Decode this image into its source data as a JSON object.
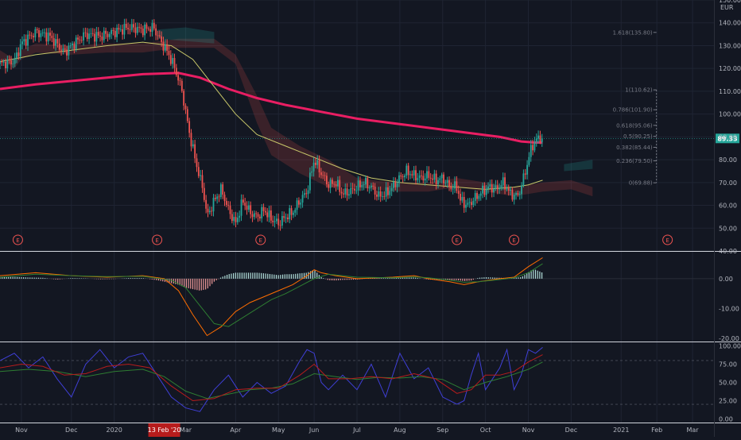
{
  "chart_data": {
    "type": "candlestick",
    "currency_label": "EUR",
    "current_price_label": "89.33",
    "price_axis": {
      "range": [
        40,
        150
      ],
      "ticks": [
        "150.00",
        "140.00",
        "130.00",
        "120.00",
        "110.00",
        "100.00",
        "90.00",
        "80.00",
        "70.00",
        "60.00",
        "50.00",
        "40.00"
      ]
    },
    "macd_axis": {
      "range": [
        -21,
        9
      ],
      "ticks": [
        "0.00",
        "-10.00",
        "-20.00"
      ]
    },
    "stoch_axis": {
      "range": [
        -5,
        105
      ],
      "ticks": [
        "100.00",
        "75.00",
        "50.00",
        "25.00",
        "0.00"
      ]
    },
    "x_axis": {
      "labels": [
        {
          "t": 0.03,
          "label": "Nov"
        },
        {
          "t": 0.1,
          "label": "Dec"
        },
        {
          "t": 0.16,
          "label": "2020"
        },
        {
          "t": 0.215,
          "label": "Feb"
        },
        {
          "t": 0.26,
          "label": "Mar"
        },
        {
          "t": 0.33,
          "label": "Apr"
        },
        {
          "t": 0.39,
          "label": "May"
        },
        {
          "t": 0.44,
          "label": "Jun"
        },
        {
          "t": 0.5,
          "label": "Jul"
        },
        {
          "t": 0.56,
          "label": "Aug"
        },
        {
          "t": 0.62,
          "label": "Sep"
        },
        {
          "t": 0.68,
          "label": "Oct"
        },
        {
          "t": 0.74,
          "label": "Nov"
        },
        {
          "t": 0.8,
          "label": "Dec"
        },
        {
          "t": 0.87,
          "label": "2021"
        },
        {
          "t": 0.92,
          "label": "Feb"
        },
        {
          "t": 0.97,
          "label": "Mar"
        }
      ],
      "highlight": {
        "t": 0.23,
        "label": "13 Feb '20"
      }
    },
    "fibonacci": [
      {
        "label": "1.618(135.80)",
        "value": 135.8
      },
      {
        "label": "1(110.62)",
        "value": 110.62
      },
      {
        "label": "0.786(101.90)",
        "value": 101.9
      },
      {
        "label": "0.618(95.06)",
        "value": 95.06
      },
      {
        "label": "0.5(90.25)",
        "value": 90.25
      },
      {
        "label": "0.382(85.44)",
        "value": 85.44
      },
      {
        "label": "0.236(79.50)",
        "value": 79.5
      },
      {
        "label": "0(69.88)",
        "value": 69.88
      }
    ],
    "earnings_markers": [
      {
        "t": 0.025,
        "label": "E"
      },
      {
        "t": 0.22,
        "label": "E"
      },
      {
        "t": 0.365,
        "label": "E"
      },
      {
        "t": 0.64,
        "label": "E"
      },
      {
        "t": 0.72,
        "label": "E"
      },
      {
        "t": 0.935,
        "label": "E"
      }
    ],
    "price_path": [
      [
        0.0,
        122
      ],
      [
        0.02,
        123
      ],
      [
        0.03,
        131
      ],
      [
        0.05,
        136
      ],
      [
        0.07,
        134
      ],
      [
        0.09,
        127
      ],
      [
        0.1,
        130
      ],
      [
        0.12,
        135
      ],
      [
        0.14,
        134
      ],
      [
        0.16,
        136
      ],
      [
        0.18,
        138
      ],
      [
        0.2,
        137
      ],
      [
        0.215,
        138
      ],
      [
        0.225,
        132
      ],
      [
        0.235,
        127
      ],
      [
        0.245,
        120
      ],
      [
        0.255,
        110
      ],
      [
        0.265,
        92
      ],
      [
        0.275,
        78
      ],
      [
        0.285,
        66
      ],
      [
        0.29,
        55
      ],
      [
        0.3,
        62
      ],
      [
        0.31,
        67
      ],
      [
        0.32,
        58
      ],
      [
        0.33,
        52
      ],
      [
        0.34,
        62
      ],
      [
        0.35,
        57
      ],
      [
        0.36,
        55
      ],
      [
        0.37,
        58
      ],
      [
        0.38,
        54
      ],
      [
        0.39,
        52
      ],
      [
        0.4,
        55
      ],
      [
        0.41,
        57
      ],
      [
        0.42,
        62
      ],
      [
        0.43,
        66
      ],
      [
        0.44,
        80
      ],
      [
        0.45,
        74
      ],
      [
        0.46,
        69
      ],
      [
        0.47,
        70
      ],
      [
        0.48,
        65
      ],
      [
        0.49,
        66
      ],
      [
        0.5,
        68
      ],
      [
        0.51,
        70
      ],
      [
        0.52,
        68
      ],
      [
        0.53,
        64
      ],
      [
        0.54,
        65
      ],
      [
        0.55,
        68
      ],
      [
        0.56,
        72
      ],
      [
        0.57,
        75
      ],
      [
        0.58,
        73
      ],
      [
        0.59,
        72
      ],
      [
        0.6,
        73
      ],
      [
        0.61,
        71
      ],
      [
        0.62,
        72
      ],
      [
        0.63,
        68
      ],
      [
        0.64,
        68
      ],
      [
        0.645,
        62
      ],
      [
        0.655,
        60
      ],
      [
        0.665,
        63
      ],
      [
        0.675,
        66
      ],
      [
        0.685,
        68
      ],
      [
        0.695,
        67
      ],
      [
        0.705,
        70
      ],
      [
        0.715,
        65
      ],
      [
        0.725,
        64
      ],
      [
        0.73,
        68
      ],
      [
        0.74,
        80
      ],
      [
        0.745,
        86
      ],
      [
        0.75,
        88
      ],
      [
        0.755,
        90
      ],
      [
        0.76,
        89
      ]
    ],
    "ema_slow": [
      [
        0.0,
        111
      ],
      [
        0.05,
        113
      ],
      [
        0.1,
        114.5
      ],
      [
        0.15,
        116
      ],
      [
        0.2,
        117.5
      ],
      [
        0.25,
        118
      ],
      [
        0.28,
        116
      ],
      [
        0.32,
        111
      ],
      [
        0.36,
        107
      ],
      [
        0.4,
        104
      ],
      [
        0.45,
        101
      ],
      [
        0.5,
        98
      ],
      [
        0.55,
        96
      ],
      [
        0.6,
        94
      ],
      [
        0.65,
        92
      ],
      [
        0.7,
        90
      ],
      [
        0.73,
        88
      ],
      [
        0.75,
        87.5
      ],
      [
        0.76,
        87.5
      ]
    ],
    "ema_fast": [
      [
        0.0,
        123
      ],
      [
        0.05,
        126
      ],
      [
        0.1,
        128
      ],
      [
        0.15,
        130
      ],
      [
        0.2,
        131.5
      ],
      [
        0.24,
        130
      ],
      [
        0.27,
        124
      ],
      [
        0.3,
        112
      ],
      [
        0.33,
        100
      ],
      [
        0.36,
        91
      ],
      [
        0.4,
        86
      ],
      [
        0.44,
        81
      ],
      [
        0.48,
        76
      ],
      [
        0.52,
        72
      ],
      [
        0.56,
        70
      ],
      [
        0.6,
        69
      ],
      [
        0.64,
        68
      ],
      [
        0.68,
        67
      ],
      [
        0.7,
        67.5
      ],
      [
        0.72,
        68
      ],
      [
        0.74,
        69
      ],
      [
        0.76,
        71
      ]
    ],
    "macd_line": [
      [
        0.0,
        1
      ],
      [
        0.05,
        2
      ],
      [
        0.1,
        1
      ],
      [
        0.15,
        0.5
      ],
      [
        0.2,
        1
      ],
      [
        0.23,
        0
      ],
      [
        0.25,
        -4
      ],
      [
        0.27,
        -12
      ],
      [
        0.29,
        -19
      ],
      [
        0.31,
        -16
      ],
      [
        0.33,
        -11
      ],
      [
        0.35,
        -8
      ],
      [
        0.37,
        -6
      ],
      [
        0.39,
        -4
      ],
      [
        0.41,
        -2
      ],
      [
        0.43,
        1
      ],
      [
        0.44,
        3
      ],
      [
        0.45,
        2
      ],
      [
        0.47,
        1
      ],
      [
        0.5,
        0
      ],
      [
        0.55,
        0.5
      ],
      [
        0.58,
        1
      ],
      [
        0.6,
        0
      ],
      [
        0.63,
        -1
      ],
      [
        0.65,
        -2
      ],
      [
        0.67,
        -1
      ],
      [
        0.7,
        0
      ],
      [
        0.72,
        0.5
      ],
      [
        0.74,
        4
      ],
      [
        0.76,
        7
      ]
    ],
    "macd_signal": [
      [
        0.0,
        0.5
      ],
      [
        0.05,
        1.5
      ],
      [
        0.1,
        1
      ],
      [
        0.15,
        0.7
      ],
      [
        0.2,
        0.8
      ],
      [
        0.24,
        -0.5
      ],
      [
        0.26,
        -3
      ],
      [
        0.28,
        -9
      ],
      [
        0.3,
        -15
      ],
      [
        0.32,
        -16
      ],
      [
        0.34,
        -13
      ],
      [
        0.36,
        -10
      ],
      [
        0.38,
        -7
      ],
      [
        0.4,
        -5
      ],
      [
        0.42,
        -2.5
      ],
      [
        0.44,
        0
      ],
      [
        0.46,
        1.5
      ],
      [
        0.48,
        1
      ],
      [
        0.5,
        0.5
      ],
      [
        0.55,
        0.3
      ],
      [
        0.58,
        0.6
      ],
      [
        0.6,
        0.3
      ],
      [
        0.63,
        -0.5
      ],
      [
        0.65,
        -1.2
      ],
      [
        0.67,
        -1
      ],
      [
        0.7,
        -0.3
      ],
      [
        0.72,
        0.3
      ],
      [
        0.74,
        2
      ],
      [
        0.76,
        5
      ]
    ],
    "macd_hist": [
      [
        0.0,
        0.5
      ],
      [
        0.02,
        0.6
      ],
      [
        0.04,
        0.4
      ],
      [
        0.06,
        0.3
      ],
      [
        0.08,
        -0.3
      ],
      [
        0.1,
        0.2
      ],
      [
        0.12,
        0.1
      ],
      [
        0.14,
        -0.2
      ],
      [
        0.16,
        -0.1
      ],
      [
        0.18,
        0.2
      ],
      [
        0.2,
        0.2
      ],
      [
        0.22,
        -0.5
      ],
      [
        0.24,
        -1.5
      ],
      [
        0.25,
        -2
      ],
      [
        0.26,
        -3
      ],
      [
        0.27,
        -3.5
      ],
      [
        0.28,
        -4
      ],
      [
        0.29,
        -3.5
      ],
      [
        0.3,
        -1
      ],
      [
        0.31,
        0.5
      ],
      [
        0.32,
        1.5
      ],
      [
        0.33,
        2
      ],
      [
        0.34,
        2
      ],
      [
        0.35,
        2
      ],
      [
        0.36,
        2
      ],
      [
        0.37,
        1.8
      ],
      [
        0.38,
        1.5
      ],
      [
        0.39,
        1.2
      ],
      [
        0.4,
        1.5
      ],
      [
        0.41,
        1.5
      ],
      [
        0.42,
        1.8
      ],
      [
        0.43,
        2
      ],
      [
        0.44,
        3
      ],
      [
        0.45,
        0.5
      ],
      [
        0.46,
        -0.5
      ],
      [
        0.47,
        -0.6
      ],
      [
        0.48,
        -0.4
      ],
      [
        0.5,
        -0.3
      ],
      [
        0.52,
        0.2
      ],
      [
        0.54,
        0.2
      ],
      [
        0.56,
        0.3
      ],
      [
        0.58,
        0.4
      ],
      [
        0.6,
        -0.3
      ],
      [
        0.62,
        -0.4
      ],
      [
        0.64,
        -0.5
      ],
      [
        0.65,
        -0.8
      ],
      [
        0.66,
        -0.6
      ],
      [
        0.67,
        0.3
      ],
      [
        0.68,
        0.5
      ],
      [
        0.69,
        0.4
      ],
      [
        0.7,
        0.3
      ],
      [
        0.71,
        0.2
      ],
      [
        0.72,
        0.3
      ],
      [
        0.73,
        0.5
      ],
      [
        0.74,
        2
      ],
      [
        0.745,
        3
      ],
      [
        0.75,
        3
      ],
      [
        0.755,
        2.5
      ],
      [
        0.76,
        2
      ]
    ],
    "stoch_k": [
      [
        0.0,
        80
      ],
      [
        0.02,
        90
      ],
      [
        0.04,
        70
      ],
      [
        0.06,
        85
      ],
      [
        0.08,
        55
      ],
      [
        0.1,
        30
      ],
      [
        0.12,
        75
      ],
      [
        0.14,
        95
      ],
      [
        0.16,
        70
      ],
      [
        0.18,
        85
      ],
      [
        0.2,
        90
      ],
      [
        0.22,
        60
      ],
      [
        0.24,
        30
      ],
      [
        0.26,
        15
      ],
      [
        0.28,
        10
      ],
      [
        0.3,
        40
      ],
      [
        0.32,
        60
      ],
      [
        0.34,
        30
      ],
      [
        0.36,
        50
      ],
      [
        0.38,
        35
      ],
      [
        0.4,
        45
      ],
      [
        0.42,
        80
      ],
      [
        0.43,
        95
      ],
      [
        0.44,
        90
      ],
      [
        0.45,
        50
      ],
      [
        0.46,
        40
      ],
      [
        0.48,
        60
      ],
      [
        0.5,
        40
      ],
      [
        0.52,
        75
      ],
      [
        0.54,
        30
      ],
      [
        0.56,
        90
      ],
      [
        0.58,
        55
      ],
      [
        0.6,
        70
      ],
      [
        0.62,
        30
      ],
      [
        0.64,
        20
      ],
      [
        0.65,
        25
      ],
      [
        0.66,
        60
      ],
      [
        0.67,
        90
      ],
      [
        0.68,
        40
      ],
      [
        0.7,
        70
      ],
      [
        0.71,
        95
      ],
      [
        0.72,
        40
      ],
      [
        0.73,
        60
      ],
      [
        0.74,
        95
      ],
      [
        0.75,
        90
      ],
      [
        0.76,
        98
      ]
    ],
    "stoch_d": [
      [
        0.0,
        70
      ],
      [
        0.03,
        75
      ],
      [
        0.06,
        72
      ],
      [
        0.09,
        60
      ],
      [
        0.12,
        62
      ],
      [
        0.15,
        72
      ],
      [
        0.18,
        75
      ],
      [
        0.21,
        70
      ],
      [
        0.24,
        45
      ],
      [
        0.27,
        25
      ],
      [
        0.3,
        28
      ],
      [
        0.33,
        40
      ],
      [
        0.36,
        42
      ],
      [
        0.39,
        42
      ],
      [
        0.42,
        60
      ],
      [
        0.44,
        75
      ],
      [
        0.46,
        55
      ],
      [
        0.49,
        55
      ],
      [
        0.52,
        58
      ],
      [
        0.55,
        55
      ],
      [
        0.58,
        62
      ],
      [
        0.61,
        55
      ],
      [
        0.64,
        35
      ],
      [
        0.66,
        40
      ],
      [
        0.68,
        60
      ],
      [
        0.7,
        60
      ],
      [
        0.72,
        65
      ],
      [
        0.74,
        78
      ],
      [
        0.76,
        88
      ]
    ],
    "stoch_signal": [
      [
        0.0,
        65
      ],
      [
        0.04,
        68
      ],
      [
        0.08,
        65
      ],
      [
        0.12,
        58
      ],
      [
        0.16,
        65
      ],
      [
        0.2,
        68
      ],
      [
        0.23,
        58
      ],
      [
        0.26,
        38
      ],
      [
        0.29,
        28
      ],
      [
        0.32,
        34
      ],
      [
        0.35,
        40
      ],
      [
        0.38,
        42
      ],
      [
        0.41,
        48
      ],
      [
        0.44,
        62
      ],
      [
        0.47,
        58
      ],
      [
        0.5,
        54
      ],
      [
        0.53,
        57
      ],
      [
        0.56,
        56
      ],
      [
        0.59,
        58
      ],
      [
        0.62,
        54
      ],
      [
        0.65,
        40
      ],
      [
        0.68,
        50
      ],
      [
        0.71,
        58
      ],
      [
        0.74,
        68
      ],
      [
        0.76,
        78
      ]
    ],
    "colors": {
      "background": "#131722",
      "grid": "#1f2433",
      "up": "#26a69a",
      "down": "#ef5350",
      "ema_slow": "#e91e63",
      "ema_fast": "#c9c86a",
      "macd": "#ff6d00",
      "signal": "#2e7d32",
      "stoch_k": "#3f3fd6",
      "stoch_d": "#b71c1c",
      "price_label_bg": "#26a69a"
    }
  }
}
